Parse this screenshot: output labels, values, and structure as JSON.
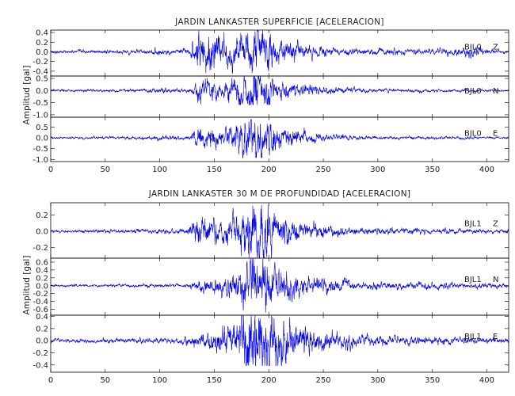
{
  "chart_data": [
    {
      "type": "line",
      "title": "JARDIN LANKASTER SUPERFICIE [ACELERACION]",
      "ylabel": "Amplitud [gal]",
      "x_ticks": [
        0,
        50,
        100,
        150,
        200,
        250,
        300,
        350,
        400
      ],
      "xlim": [
        0,
        420
      ],
      "panels": [
        {
          "channel": "BJL0",
          "component": "Z",
          "ylim": [
            -0.5,
            0.45
          ],
          "y_ticks": [
            "-0.4",
            "-0.2",
            "0.0",
            "0.2",
            "0.4"
          ],
          "y_tick_values": [
            -0.4,
            -0.2,
            0.0,
            0.2,
            0.4
          ],
          "envelope": [
            {
              "x": 0,
              "amp": 0.02
            },
            {
              "x": 90,
              "amp": 0.03
            },
            {
              "x": 100,
              "amp": 0.06
            },
            {
              "x": 110,
              "amp": 0.03
            },
            {
              "x": 128,
              "amp": 0.05
            },
            {
              "x": 135,
              "amp": 0.3
            },
            {
              "x": 150,
              "amp": 0.22
            },
            {
              "x": 170,
              "amp": 0.2
            },
            {
              "x": 190,
              "amp": 0.42
            },
            {
              "x": 205,
              "amp": 0.2
            },
            {
              "x": 230,
              "amp": 0.1
            },
            {
              "x": 260,
              "amp": 0.05
            },
            {
              "x": 350,
              "amp": 0.04
            },
            {
              "x": 390,
              "amp": 0.07
            },
            {
              "x": 400,
              "amp": 0.03
            },
            {
              "x": 420,
              "amp": 0.02
            }
          ]
        },
        {
          "channel": "BJL0",
          "component": "N",
          "ylim": [
            -1.1,
            0.6
          ],
          "y_ticks": [
            "-1.0",
            "-0.5",
            "0.0",
            "0.5"
          ],
          "y_tick_values": [
            -1.0,
            -0.5,
            0.0,
            0.5
          ],
          "envelope": [
            {
              "x": 0,
              "amp": 0.03
            },
            {
              "x": 90,
              "amp": 0.05
            },
            {
              "x": 100,
              "amp": 0.08
            },
            {
              "x": 128,
              "amp": 0.06
            },
            {
              "x": 135,
              "amp": 0.3
            },
            {
              "x": 160,
              "amp": 0.25
            },
            {
              "x": 185,
              "amp": 0.6
            },
            {
              "x": 195,
              "amp": 0.5
            },
            {
              "x": 215,
              "amp": 0.25
            },
            {
              "x": 250,
              "amp": 0.1
            },
            {
              "x": 300,
              "amp": 0.05
            },
            {
              "x": 420,
              "amp": 0.03
            }
          ]
        },
        {
          "channel": "BJL0",
          "component": "E",
          "ylim": [
            -1.1,
            0.95
          ],
          "y_ticks": [
            "-1.0",
            "-0.5",
            "0.0",
            "0.5"
          ],
          "y_tick_values": [
            -1.0,
            -0.5,
            0.0,
            0.5
          ],
          "envelope": [
            {
              "x": 0,
              "amp": 0.03
            },
            {
              "x": 90,
              "amp": 0.05
            },
            {
              "x": 100,
              "amp": 0.08
            },
            {
              "x": 128,
              "amp": 0.06
            },
            {
              "x": 135,
              "amp": 0.3
            },
            {
              "x": 160,
              "amp": 0.3
            },
            {
              "x": 188,
              "amp": 0.8
            },
            {
              "x": 200,
              "amp": 0.5
            },
            {
              "x": 220,
              "amp": 0.25
            },
            {
              "x": 250,
              "amp": 0.1
            },
            {
              "x": 300,
              "amp": 0.05
            },
            {
              "x": 420,
              "amp": 0.03
            }
          ]
        }
      ]
    },
    {
      "type": "line",
      "title": "JARDIN LANKASTER 30 M DE PROFUNDIDAD [ACELERACION]",
      "ylabel": "Amplitud [gal]",
      "x_ticks": [
        0,
        50,
        100,
        150,
        200,
        250,
        300,
        350,
        400
      ],
      "xlim": [
        0,
        420
      ],
      "panels": [
        {
          "channel": "BJL1",
          "component": "Z",
          "ylim": [
            -0.33,
            0.35
          ],
          "y_ticks": [
            "-0.2",
            "0.0",
            "0.2"
          ],
          "y_tick_values": [
            -0.2,
            0.0,
            0.2
          ],
          "envelope": [
            {
              "x": 0,
              "amp": 0.01
            },
            {
              "x": 125,
              "amp": 0.02
            },
            {
              "x": 130,
              "amp": 0.12
            },
            {
              "x": 150,
              "amp": 0.1
            },
            {
              "x": 175,
              "amp": 0.14
            },
            {
              "x": 190,
              "amp": 0.3
            },
            {
              "x": 210,
              "amp": 0.12
            },
            {
              "x": 240,
              "amp": 0.06
            },
            {
              "x": 280,
              "amp": 0.03
            },
            {
              "x": 420,
              "amp": 0.015
            }
          ]
        },
        {
          "channel": "BJL1",
          "component": "N",
          "ylim": [
            -0.75,
            0.7
          ],
          "y_ticks": [
            "-0.6",
            "-0.4",
            "-0.2",
            "0.0",
            "0.2",
            "0.4",
            "0.6"
          ],
          "y_tick_values": [
            -0.6,
            -0.4,
            -0.2,
            0.0,
            0.2,
            0.4,
            0.6
          ],
          "envelope": [
            {
              "x": 0,
              "amp": 0.02
            },
            {
              "x": 125,
              "amp": 0.03
            },
            {
              "x": 135,
              "amp": 0.1
            },
            {
              "x": 160,
              "amp": 0.15
            },
            {
              "x": 190,
              "amp": 0.55
            },
            {
              "x": 205,
              "amp": 0.3
            },
            {
              "x": 240,
              "amp": 0.15
            },
            {
              "x": 280,
              "amp": 0.07
            },
            {
              "x": 420,
              "amp": 0.04
            }
          ]
        },
        {
          "channel": "BJL1",
          "component": "E",
          "ylim": [
            -0.52,
            0.42
          ],
          "y_ticks": [
            "-0.4",
            "-0.2",
            "0.0",
            "0.2",
            "0.4"
          ],
          "y_tick_values": [
            -0.4,
            -0.2,
            0.0,
            0.2,
            0.4
          ],
          "envelope": [
            {
              "x": 0,
              "amp": 0.02
            },
            {
              "x": 120,
              "amp": 0.03
            },
            {
              "x": 140,
              "amp": 0.08
            },
            {
              "x": 170,
              "amp": 0.2
            },
            {
              "x": 190,
              "amp": 0.45
            },
            {
              "x": 205,
              "amp": 0.3
            },
            {
              "x": 240,
              "amp": 0.12
            },
            {
              "x": 300,
              "amp": 0.05
            },
            {
              "x": 420,
              "amp": 0.03
            }
          ]
        }
      ]
    }
  ]
}
